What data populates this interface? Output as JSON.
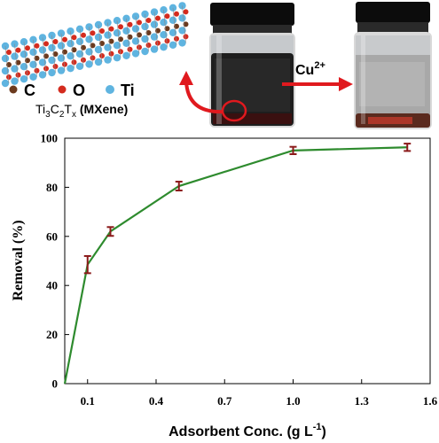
{
  "schematic": {
    "legend": [
      {
        "symbol": "C",
        "color": "#6b3a1e"
      },
      {
        "symbol": "O",
        "color": "#d42b1e"
      },
      {
        "symbol": "Ti",
        "color": "#5fb4e0"
      }
    ],
    "formula": {
      "parts": [
        {
          "text": "Ti",
          "sub": "3"
        },
        {
          "text": "C",
          "sub": "2"
        },
        {
          "text": "T",
          "sub": "x"
        },
        {
          "text": " (MXene)",
          "sub": ""
        }
      ]
    },
    "arrow_label": {
      "text": "Cu",
      "sup": "2+"
    },
    "colors": {
      "arrow": "#e0191e",
      "vial_dark": "#1a1a1a",
      "vial_cap": "#0c0c0c",
      "vial_clear": "#9a9a9a"
    }
  },
  "chart_data": {
    "type": "line",
    "xlabel": "Adsorbent Conc. (g L",
    "xlabel_sup": "-1",
    "xlabel_end": ")",
    "ylabel": "Removal (%)",
    "xlim": [
      0,
      1.6
    ],
    "ylim": [
      0,
      100
    ],
    "xticks": [
      "0.1",
      "0.4",
      "0.7",
      "1.0",
      "1.3",
      "1.6"
    ],
    "yticks": [
      "0",
      "20",
      "40",
      "60",
      "80",
      "100"
    ],
    "series": [
      {
        "color": "#2e8b2e",
        "marker_color": "#8b1a1a",
        "x": [
          0,
          0.1,
          0.2,
          0.5,
          1.0,
          1.5
        ],
        "y": [
          0,
          48.5,
          62,
          80.5,
          95,
          96.3
        ],
        "err": [
          0,
          3.5,
          1.8,
          1.8,
          1.5,
          1.5
        ]
      }
    ],
    "grid": false
  }
}
